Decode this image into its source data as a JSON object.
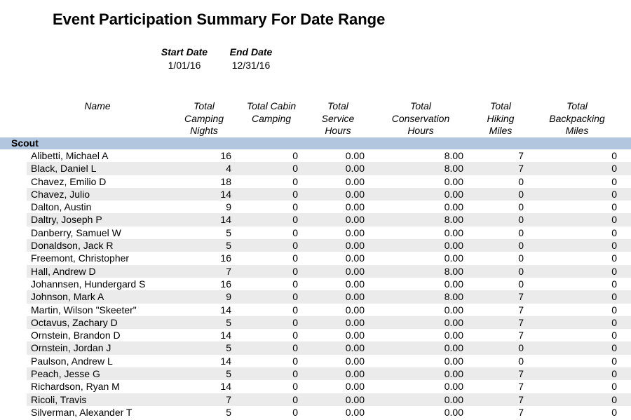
{
  "report": {
    "title": "Event Participation Summary For Date Range",
    "start_date_label": "Start Date",
    "start_date": "1/01/16",
    "end_date_label": "End Date",
    "end_date": "12/31/16"
  },
  "columns": [
    {
      "key": "name",
      "label": "Name"
    },
    {
      "key": "camping_nights",
      "label": "Total\nCamping\nNights"
    },
    {
      "key": "cabin_camping",
      "label": "Total Cabin\nCamping"
    },
    {
      "key": "service_hours",
      "label": "Total\nService\nHours"
    },
    {
      "key": "conservation_hours",
      "label": "Total\nConservation\nHours"
    },
    {
      "key": "hiking_miles",
      "label": "Total\nHiking\nMiles"
    },
    {
      "key": "backpacking_miles",
      "label": "Total\nBackpacking\nMiles"
    }
  ],
  "group": {
    "label": "Scout",
    "rows": [
      [
        "Alibetti, Michael A",
        "16",
        "0",
        "0.00",
        "8.00",
        "7",
        "0"
      ],
      [
        "Black, Daniel L",
        "4",
        "0",
        "0.00",
        "8.00",
        "7",
        "0"
      ],
      [
        "Chavez, Emilio D",
        "18",
        "0",
        "0.00",
        "0.00",
        "0",
        "0"
      ],
      [
        "Chavez, Julio",
        "14",
        "0",
        "0.00",
        "0.00",
        "0",
        "0"
      ],
      [
        "Dalton, Austin",
        "9",
        "0",
        "0.00",
        "0.00",
        "0",
        "0"
      ],
      [
        "Daltry, Joseph P",
        "14",
        "0",
        "0.00",
        "8.00",
        "0",
        "0"
      ],
      [
        "Danberry, Samuel W",
        "5",
        "0",
        "0.00",
        "0.00",
        "0",
        "0"
      ],
      [
        "Donaldson, Jack R",
        "5",
        "0",
        "0.00",
        "0.00",
        "0",
        "0"
      ],
      [
        "Freemont, Christopher",
        "16",
        "0",
        "0.00",
        "0.00",
        "0",
        "0"
      ],
      [
        "Hall, Andrew D",
        "7",
        "0",
        "0.00",
        "8.00",
        "0",
        "0"
      ],
      [
        "Johannsen, Hundergard S",
        "16",
        "0",
        "0.00",
        "0.00",
        "0",
        "0"
      ],
      [
        "Johnson, Mark A",
        "9",
        "0",
        "0.00",
        "8.00",
        "7",
        "0"
      ],
      [
        "Martin, Wilson \"Skeeter\"",
        "14",
        "0",
        "0.00",
        "0.00",
        "7",
        "0"
      ],
      [
        "Octavus, Zachary D",
        "5",
        "0",
        "0.00",
        "0.00",
        "7",
        "0"
      ],
      [
        "Ornstein, Brandon D",
        "14",
        "0",
        "0.00",
        "0.00",
        "7",
        "0"
      ],
      [
        "Ornstein, Jordan J",
        "5",
        "0",
        "0.00",
        "0.00",
        "0",
        "0"
      ],
      [
        "Paulson, Andrew L",
        "14",
        "0",
        "0.00",
        "0.00",
        "0",
        "0"
      ],
      [
        "Peach, Jesse G",
        "5",
        "0",
        "0.00",
        "0.00",
        "7",
        "0"
      ],
      [
        "Richardson, Ryan M",
        "14",
        "0",
        "0.00",
        "0.00",
        "7",
        "0"
      ],
      [
        "Ricoli, Travis",
        "7",
        "0",
        "0.00",
        "0.00",
        "7",
        "0"
      ],
      [
        "Silverman, Alexander T",
        "5",
        "0",
        "0.00",
        "0.00",
        "7",
        "0"
      ]
    ]
  },
  "colors": {
    "group_bar": "#b3c6df",
    "alt_row": "#ebebeb"
  }
}
